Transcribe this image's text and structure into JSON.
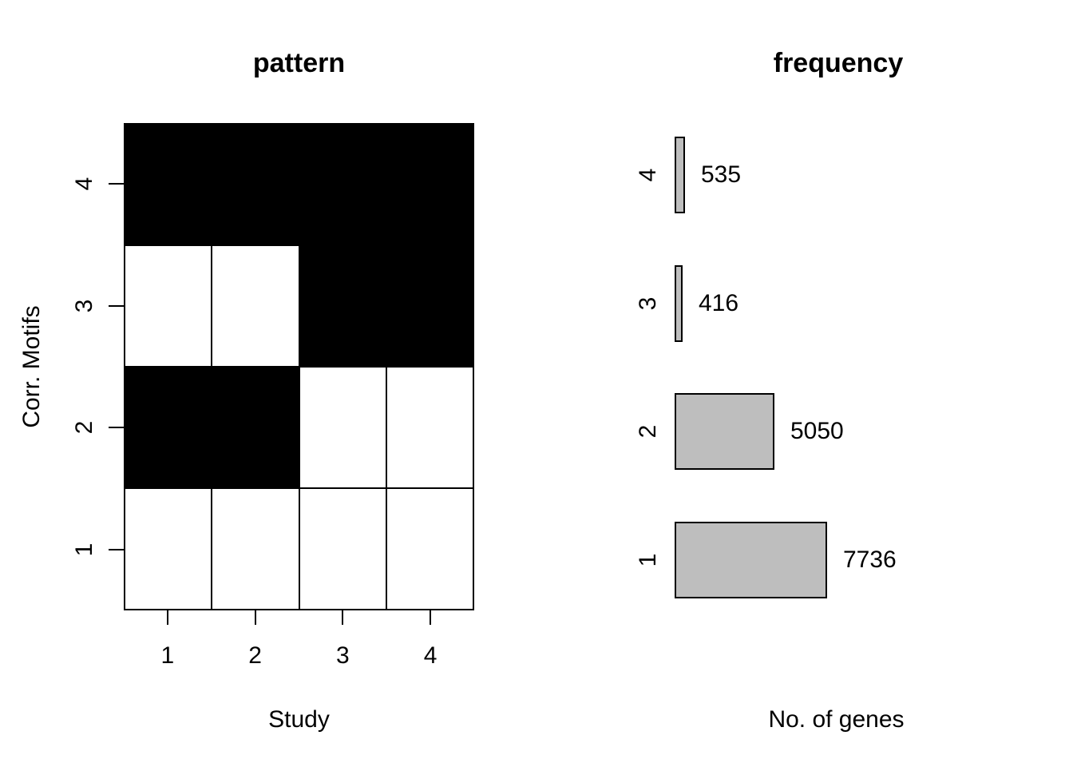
{
  "chart_data": [
    {
      "type": "heatmap",
      "title": "pattern",
      "xlabel": "Study",
      "ylabel": "Corr. Motifs",
      "x_ticks": [
        "1",
        "2",
        "3",
        "4"
      ],
      "y_ticks_top_to_bottom": [
        "4",
        "3",
        "2",
        "1"
      ],
      "legend": "filled cell = motif present in study, empty cell = absent",
      "colors": {
        "on": "#000000",
        "off": "#FFFFFF"
      },
      "rows": [
        {
          "y": "4",
          "cells": [
            1,
            1,
            1,
            1
          ]
        },
        {
          "y": "3",
          "cells": [
            0,
            0,
            1,
            1
          ]
        },
        {
          "y": "2",
          "cells": [
            1,
            1,
            0,
            0
          ]
        },
        {
          "y": "1",
          "cells": [
            0,
            0,
            0,
            0
          ]
        }
      ]
    },
    {
      "type": "bar",
      "title": "frequency",
      "xlabel": "No. of genes",
      "orientation": "horizontal",
      "bar_color": "#BEBEBE",
      "border_color": "#000000",
      "categories": [
        "4",
        "3",
        "2",
        "1"
      ],
      "values": [
        535,
        416,
        5050,
        7736
      ],
      "bars": [
        {
          "category": "4",
          "value": 535,
          "label": "535"
        },
        {
          "category": "3",
          "value": 416,
          "label": "416"
        },
        {
          "category": "2",
          "value": 5050,
          "label": "5050"
        },
        {
          "category": "1",
          "value": 7736,
          "label": "7736"
        }
      ]
    }
  ]
}
